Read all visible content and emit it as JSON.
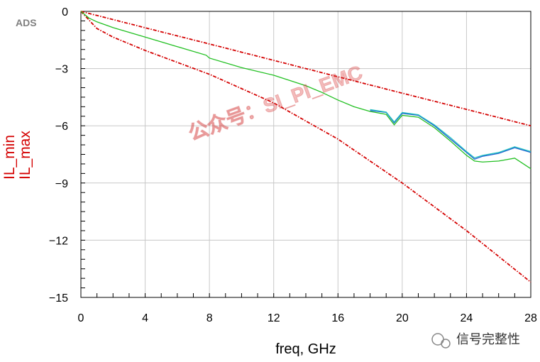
{
  "app_tag": "ADS",
  "watermark": "公众号：SI_PI_EMC",
  "footer": {
    "account": "信号完整性",
    "icon": "wechat-icon"
  },
  "colors": {
    "limits": "#d40000",
    "series_green": "#22c022",
    "series_blue": "#2060d0",
    "series_cyan": "#20c0c0",
    "grid": "#c8c8c8"
  },
  "chart_data": {
    "type": "line",
    "title": "",
    "xlabel": "freq, GHz",
    "ylabels": [
      "IL_min",
      "IL_max"
    ],
    "xlim": [
      0,
      28
    ],
    "ylim": [
      -15,
      0
    ],
    "xticks": [
      0,
      4,
      8,
      12,
      16,
      20,
      24,
      28
    ],
    "yticks": [
      0,
      -3,
      -6,
      -9,
      -12,
      -15
    ],
    "grid": true,
    "series": [
      {
        "name": "IL_max",
        "style": "dash-dot",
        "color": "#d40000",
        "x": [
          0,
          4,
          8,
          12,
          16,
          20,
          24,
          28
        ],
        "y": [
          0,
          -0.86,
          -1.71,
          -2.57,
          -3.43,
          -4.29,
          -5.14,
          -6.0
        ]
      },
      {
        "name": "IL_min",
        "style": "dash-dot",
        "color": "#d40000",
        "x": [
          0,
          1,
          2,
          4,
          8,
          12,
          16,
          20,
          24,
          28
        ],
        "y": [
          0,
          -0.9,
          -1.35,
          -2.05,
          -3.3,
          -4.8,
          -6.7,
          -9.0,
          -11.5,
          -14.2
        ]
      },
      {
        "color": "#22c022",
        "x": [
          0,
          0.5,
          1,
          2,
          4,
          6,
          7.8,
          8,
          10,
          12,
          14,
          15,
          16,
          17,
          18,
          19,
          19.5,
          20,
          21,
          22,
          23,
          24,
          24.5,
          25,
          26,
          27,
          28
        ],
        "y": [
          0,
          -0.35,
          -0.55,
          -0.85,
          -1.35,
          -1.85,
          -2.3,
          -2.45,
          -2.95,
          -3.35,
          -3.9,
          -4.25,
          -4.65,
          -5.0,
          -5.25,
          -5.4,
          -5.95,
          -5.45,
          -5.55,
          -6.1,
          -6.8,
          -7.55,
          -7.85,
          -7.9,
          -7.85,
          -7.7,
          -8.25
        ]
      },
      {
        "color": "#2060d0",
        "x": [
          18,
          19,
          19.5,
          20,
          21,
          22,
          23,
          24,
          24.5,
          25,
          26,
          27,
          28
        ],
        "y": [
          -5.2,
          -5.3,
          -5.85,
          -5.35,
          -5.45,
          -6.0,
          -6.7,
          -7.4,
          -7.75,
          -7.6,
          -7.45,
          -7.15,
          -7.4
        ]
      },
      {
        "color": "#20c0c0",
        "x": [
          18,
          19,
          19.5,
          20,
          21,
          22,
          23,
          24,
          24.5,
          25,
          26,
          27,
          28
        ],
        "y": [
          -5.15,
          -5.28,
          -5.8,
          -5.3,
          -5.42,
          -5.95,
          -6.62,
          -7.35,
          -7.68,
          -7.55,
          -7.4,
          -7.1,
          -7.35
        ]
      }
    ]
  }
}
